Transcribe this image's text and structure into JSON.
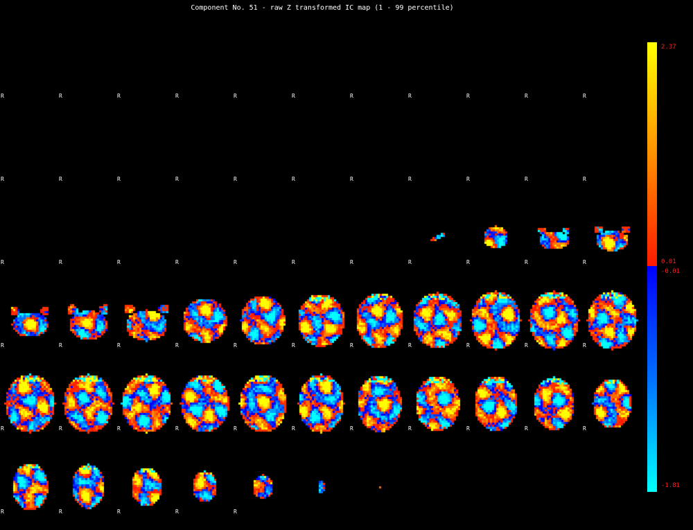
{
  "title": "Component No. 51 - raw Z transformed IC map (1 - 99 percentile)",
  "orientation_label": "R",
  "colorbar": {
    "max": "2.37",
    "pos_min": "0.01",
    "neg_max": "-0.01",
    "min": "-1.81",
    "positive_colors": [
      "#ffff00",
      "#ff9000",
      "#ff1a00"
    ],
    "negative_colors": [
      "#0000ff",
      "#0070ff",
      "#00ffff"
    ]
  },
  "slices": {
    "rows": 6,
    "cols": 11,
    "count": 66
  }
}
